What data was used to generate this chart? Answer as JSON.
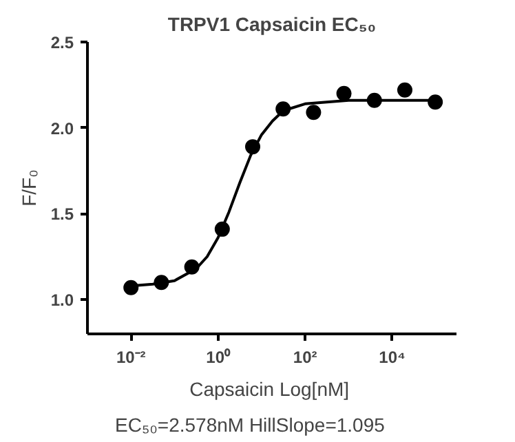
{
  "chart_data": {
    "type": "scatter",
    "title": "TRPV1 Capsaicin EC₅₀",
    "xlabel": "Capsaicin  Log[nM]",
    "ylabel": "F/F₀",
    "annotations": [
      "EC₅₀=2.578nM  HillSlope=1.095"
    ],
    "log": "x",
    "grid": false,
    "marker": "circle",
    "xlim": [
      0.001,
      300000
    ],
    "ylim": [
      0.8,
      2.5
    ],
    "xticks": [
      {
        "value": 0.01,
        "label": "10⁻²"
      },
      {
        "value": 1,
        "label": "10⁰"
      },
      {
        "value": 100,
        "label": "10²"
      },
      {
        "value": 10000,
        "label": "10⁴"
      }
    ],
    "yticks": [
      {
        "value": 1,
        "label": "1.0"
      },
      {
        "value": 1.5,
        "label": "1.5"
      },
      {
        "value": 2,
        "label": "2.0"
      },
      {
        "value": 2.5,
        "label": "2.5"
      }
    ],
    "series": [
      {
        "color": "#000000",
        "x": [
          0.01,
          0.05,
          0.25,
          1.25,
          6.25,
          31.25,
          156.25,
          781.25,
          3906.25,
          19531.25,
          97656.25
        ],
        "values": [
          1.07,
          1.1,
          1.19,
          1.41,
          1.89,
          2.11,
          2.09,
          2.2,
          2.16,
          2.22,
          2.15
        ]
      },
      {
        "type": "line",
        "color": "#000000",
        "marker": "none",
        "line_style": "solid",
        "x": [
          0.01,
          0.0316,
          0.1,
          0.316,
          0.562,
          1,
          1.78,
          3.16,
          5.62,
          10,
          17.8,
          31.6,
          100,
          1000,
          10000,
          100000
        ],
        "values": [
          1.08,
          1.09,
          1.11,
          1.18,
          1.25,
          1.36,
          1.51,
          1.68,
          1.84,
          1.96,
          2.04,
          2.1,
          2.14,
          2.16,
          2.16,
          2.16
        ]
      }
    ]
  }
}
